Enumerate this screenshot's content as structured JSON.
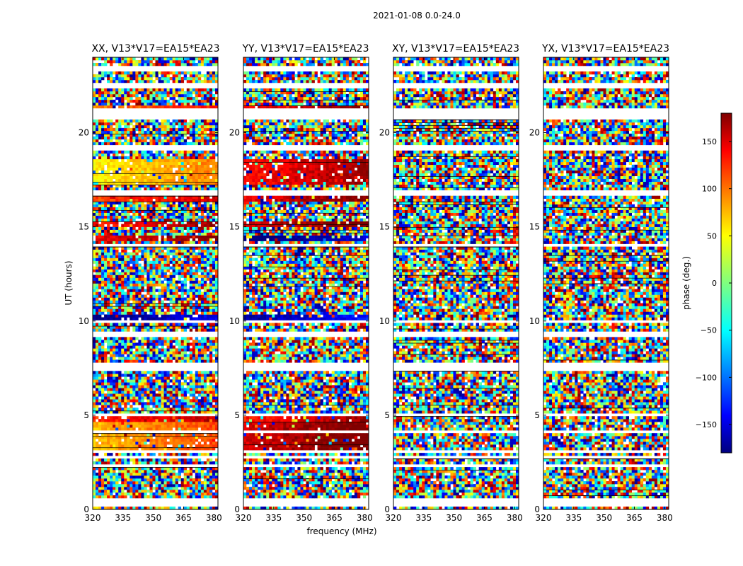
{
  "chart_data": {
    "type": "heatmap",
    "suptitle": "2021-01-08 0.0-24.0",
    "xlabel": "frequency (MHz)",
    "ylabel": "UT (hours)",
    "xlim": [
      320,
      382
    ],
    "ylim": [
      0,
      24
    ],
    "xticks": [
      320,
      335,
      350,
      365,
      380
    ],
    "yticks": [
      0,
      5,
      10,
      15,
      20
    ],
    "colorbar": {
      "label": "phase (deg.)",
      "range": [
        -180,
        180
      ],
      "ticks": [
        150,
        100,
        50,
        0,
        -50,
        -100,
        -150
      ],
      "colormap": "jet",
      "colors": [
        "#00007f",
        "#0000ff",
        "#00ffff",
        "#7fff7f",
        "#ffff00",
        "#ff7f00",
        "#ff0000",
        "#7f0000"
      ]
    },
    "flagged_hours": [
      0.25,
      0.3,
      0.5,
      2.3,
      2.8,
      3.1,
      4.1,
      5.0,
      7.5,
      7.6,
      7.7,
      9.3,
      10.0,
      14.0,
      16.8,
      16.9,
      19.2,
      19.3,
      20.8,
      21.0,
      21.2,
      22.5,
      23.4
    ],
    "panels": [
      {
        "title": "XX, V13*V17=EA15*EA23",
        "coherent_bands": [
          {
            "from_hour": 3.0,
            "to_hour": 4.6,
            "phase_deg": 90
          },
          {
            "from_hour": 4.6,
            "to_hour": 5.0,
            "phase_deg": 140
          },
          {
            "from_hour": 10.1,
            "to_hour": 10.4,
            "phase_deg": -160
          },
          {
            "from_hour": 14.3,
            "to_hour": 14.5,
            "phase_deg": 160
          },
          {
            "from_hour": 15.0,
            "to_hour": 15.3,
            "phase_deg": 150
          },
          {
            "from_hour": 16.3,
            "to_hour": 16.6,
            "phase_deg": 130
          },
          {
            "from_hour": 17.2,
            "to_hour": 18.6,
            "phase_deg": 70
          },
          {
            "from_hour": 21.2,
            "to_hour": 21.5,
            "phase_deg": 110
          }
        ]
      },
      {
        "title": "YY, V13*V17=EA15*EA23",
        "coherent_bands": [
          {
            "from_hour": 3.0,
            "to_hour": 4.6,
            "phase_deg": 170
          },
          {
            "from_hour": 4.6,
            "to_hour": 5.0,
            "phase_deg": 150
          },
          {
            "from_hour": 10.1,
            "to_hour": 10.4,
            "phase_deg": -150
          },
          {
            "from_hour": 14.3,
            "to_hour": 14.5,
            "phase_deg": -170
          },
          {
            "from_hour": 15.0,
            "to_hour": 15.3,
            "phase_deg": 170
          },
          {
            "from_hour": 16.3,
            "to_hour": 16.6,
            "phase_deg": 160
          },
          {
            "from_hour": 17.2,
            "to_hour": 18.6,
            "phase_deg": 150
          },
          {
            "from_hour": 21.2,
            "to_hour": 21.5,
            "phase_deg": 160
          }
        ]
      },
      {
        "title": "XY, V13*V17=EA15*EA23",
        "coherent_bands": []
      },
      {
        "title": "YX, V13*V17=EA15*EA23",
        "coherent_bands": []
      }
    ]
  }
}
